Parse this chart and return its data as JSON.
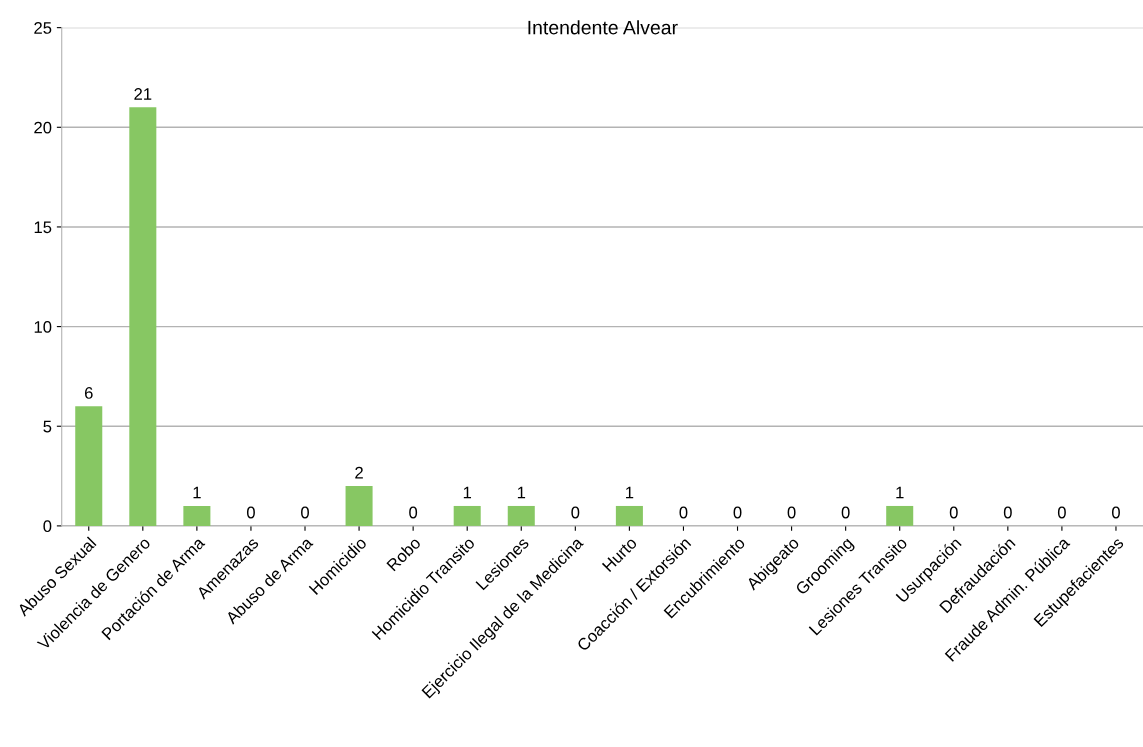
{
  "chart_data": {
    "type": "bar",
    "title": "Intendente Alvear",
    "categories": [
      "Abuso Sexual",
      "Violencia de Genero",
      "Portación de Arma",
      "Amenazas",
      "Abuso de Arma",
      "Homicidio",
      "Robo",
      "Homicidio Transito",
      "Lesiones",
      "Ejercicio Ilegal de la Medicina",
      "Hurto",
      "Coacción / Extorsión",
      "Encubrimiento",
      "Abigeato",
      "Grooming",
      "Lesiones Transito",
      "Usurpación",
      "Defraudación",
      "Fraude Admin. Pública",
      "Estupefacientes"
    ],
    "values": [
      6,
      21,
      1,
      0,
      0,
      2,
      0,
      1,
      1,
      0,
      1,
      0,
      0,
      0,
      0,
      1,
      0,
      0,
      0,
      0
    ],
    "color": "#87c763",
    "ylim": [
      0,
      25
    ],
    "yticks": [
      0,
      5,
      10,
      15,
      20,
      25
    ],
    "grid": "y",
    "data_labels": true
  }
}
